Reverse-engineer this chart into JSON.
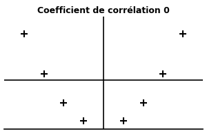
{
  "title": "Coefficient de corrélation 0",
  "title_fontsize": 9,
  "title_fontweight": "bold",
  "x_values": [
    -4,
    -3,
    -2,
    -1,
    1,
    2,
    3,
    4
  ],
  "y_values": [
    16,
    9,
    4,
    1,
    1,
    4,
    9,
    16
  ],
  "marker": "+",
  "marker_size": 7,
  "marker_color": "black",
  "marker_linewidth": 1.5,
  "xlim": [
    -5,
    5
  ],
  "ylim": [
    -0.5,
    19
  ],
  "regression_y": 8.0,
  "regression_color": "black",
  "regression_linewidth": 1.2,
  "vline_x": 0,
  "vline_color": "black",
  "vline_linewidth": 1.2,
  "bg_color": "white"
}
